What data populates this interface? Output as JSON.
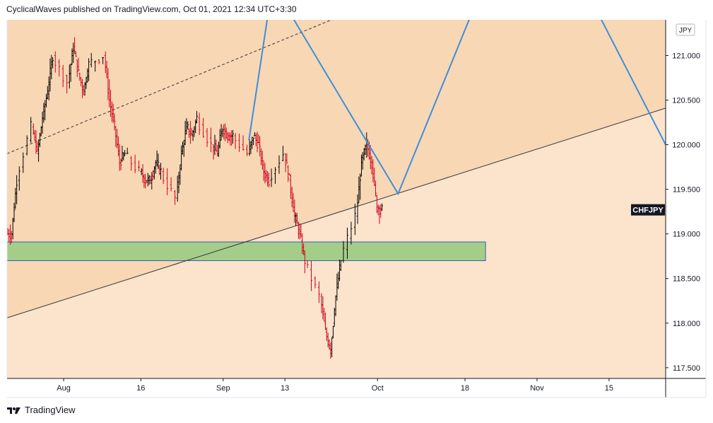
{
  "header": {
    "publisher_line": "CyclicalWaves published on TradingView.com, Oct 01, 2021 12:34 UTC+3:30"
  },
  "footer": {
    "brand": "TradingView"
  },
  "chart_data": {
    "type": "candlestick",
    "symbol": "CHFJPY",
    "currency": "JPY",
    "last_price": 119.27,
    "colors": {
      "background_upper": "#f8d7b5",
      "background_lower": "#fbe3cc",
      "candle_up": "#000000",
      "candle_down": "#d0021b",
      "zigzag": "#3d8fd9",
      "support_zone_fill": "#a5cd8a",
      "support_zone_border": "#2f5fb3",
      "trendline": "#333333"
    },
    "ylim": [
      117.38,
      121.4
    ],
    "y_ticks": [
      {
        "value": 117.5,
        "label": "117.500"
      },
      {
        "value": 118.0,
        "label": "118.000"
      },
      {
        "value": 118.5,
        "label": "118.500"
      },
      {
        "value": 119.0,
        "label": "119.000"
      },
      {
        "value": 119.5,
        "label": "119.500"
      },
      {
        "value": 120.0,
        "label": "120.000"
      },
      {
        "value": 120.5,
        "label": "120.500"
      },
      {
        "value": 121.0,
        "label": "121.000"
      }
    ],
    "x_range": [
      "2021-07-21",
      "2021-11-26"
    ],
    "x_ticks": [
      {
        "date": "2021-08-01",
        "label": "Aug"
      },
      {
        "date": "2021-08-16",
        "label": "16"
      },
      {
        "date": "2021-09-01",
        "label": "Sep"
      },
      {
        "date": "2021-09-13",
        "label": "13"
      },
      {
        "date": "2021-10-01",
        "label": "Oct"
      },
      {
        "date": "2021-10-18",
        "label": "18"
      },
      {
        "date": "2021-11-01",
        "label": "Nov"
      },
      {
        "date": "2021-11-15",
        "label": "15"
      }
    ],
    "closes": [
      {
        "d": "2021-07-21",
        "c": 119.0
      },
      {
        "d": "2021-07-22",
        "c": 119.6
      },
      {
        "d": "2021-07-23",
        "c": 120.2
      },
      {
        "d": "2021-07-26",
        "c": 119.9
      },
      {
        "d": "2021-07-27",
        "c": 120.3
      },
      {
        "d": "2021-07-28",
        "c": 120.6
      },
      {
        "d": "2021-07-29",
        "c": 121.0
      },
      {
        "d": "2021-07-30",
        "c": 120.7
      },
      {
        "d": "2021-08-02",
        "c": 121.1
      },
      {
        "d": "2021-08-03",
        "c": 120.8
      },
      {
        "d": "2021-08-04",
        "c": 120.6
      },
      {
        "d": "2021-08-05",
        "c": 120.9
      },
      {
        "d": "2021-08-06",
        "c": 121.0
      },
      {
        "d": "2021-08-09",
        "c": 120.5
      },
      {
        "d": "2021-08-10",
        "c": 120.2
      },
      {
        "d": "2021-08-11",
        "c": 119.8
      },
      {
        "d": "2021-08-12",
        "c": 119.9
      },
      {
        "d": "2021-08-13",
        "c": 119.7
      },
      {
        "d": "2021-08-16",
        "c": 119.6
      },
      {
        "d": "2021-08-17",
        "c": 119.6
      },
      {
        "d": "2021-08-18",
        "c": 119.8
      },
      {
        "d": "2021-08-19",
        "c": 119.7
      },
      {
        "d": "2021-08-20",
        "c": 119.4
      },
      {
        "d": "2021-08-23",
        "c": 119.9
      },
      {
        "d": "2021-08-24",
        "c": 120.2
      },
      {
        "d": "2021-08-25",
        "c": 120.1
      },
      {
        "d": "2021-08-26",
        "c": 120.3
      },
      {
        "d": "2021-08-27",
        "c": 120.0
      },
      {
        "d": "2021-08-30",
        "c": 119.9
      },
      {
        "d": "2021-08-31",
        "c": 120.2
      },
      {
        "d": "2021-09-01",
        "c": 120.1
      },
      {
        "d": "2021-09-02",
        "c": 120.1
      },
      {
        "d": "2021-09-03",
        "c": 119.9
      },
      {
        "d": "2021-09-06",
        "c": 120.1
      },
      {
        "d": "2021-09-07",
        "c": 120.0
      },
      {
        "d": "2021-09-08",
        "c": 119.7
      },
      {
        "d": "2021-09-09",
        "c": 119.6
      },
      {
        "d": "2021-09-10",
        "c": 119.9
      },
      {
        "d": "2021-09-13",
        "c": 119.6
      },
      {
        "d": "2021-09-14",
        "c": 119.2
      },
      {
        "d": "2021-09-15",
        "c": 119.0
      },
      {
        "d": "2021-09-16",
        "c": 118.7
      },
      {
        "d": "2021-09-17",
        "c": 118.3
      },
      {
        "d": "2021-09-20",
        "c": 117.9
      },
      {
        "d": "2021-09-21",
        "c": 117.7
      },
      {
        "d": "2021-09-22",
        "c": 118.3
      },
      {
        "d": "2021-09-23",
        "c": 118.7
      },
      {
        "d": "2021-09-24",
        "c": 119.2
      },
      {
        "d": "2021-09-27",
        "c": 119.8
      },
      {
        "d": "2021-09-28",
        "c": 120.0
      },
      {
        "d": "2021-09-29",
        "c": 119.8
      },
      {
        "d": "2021-09-30",
        "c": 119.3
      },
      {
        "d": "2021-10-01",
        "c": 119.27
      }
    ],
    "zigzag_line": [
      {
        "d": "2021-09-06",
        "v": 120.05
      },
      {
        "d": "2021-09-10",
        "v": 121.57
      },
      {
        "d": "2021-09-13",
        "v": 121.57
      },
      {
        "d": "2021-10-05",
        "v": 119.45
      },
      {
        "d": "2021-10-20",
        "v": 121.57
      },
      {
        "d": "2021-11-12",
        "v": 121.57
      },
      {
        "d": "2021-11-26",
        "v": 120.0
      }
    ],
    "support_zone": {
      "from": "2021-07-21",
      "to": "2021-10-22",
      "low": 118.7,
      "high": 118.91
    },
    "lower_trendline": [
      {
        "d": "2021-07-21",
        "v": 118.06
      },
      {
        "d": "2021-11-26",
        "v": 120.41
      }
    ],
    "upper_dashed_line": [
      {
        "d": "2021-07-21",
        "v": 119.9
      },
      {
        "d": "2021-09-25",
        "v": 121.47
      }
    ]
  }
}
